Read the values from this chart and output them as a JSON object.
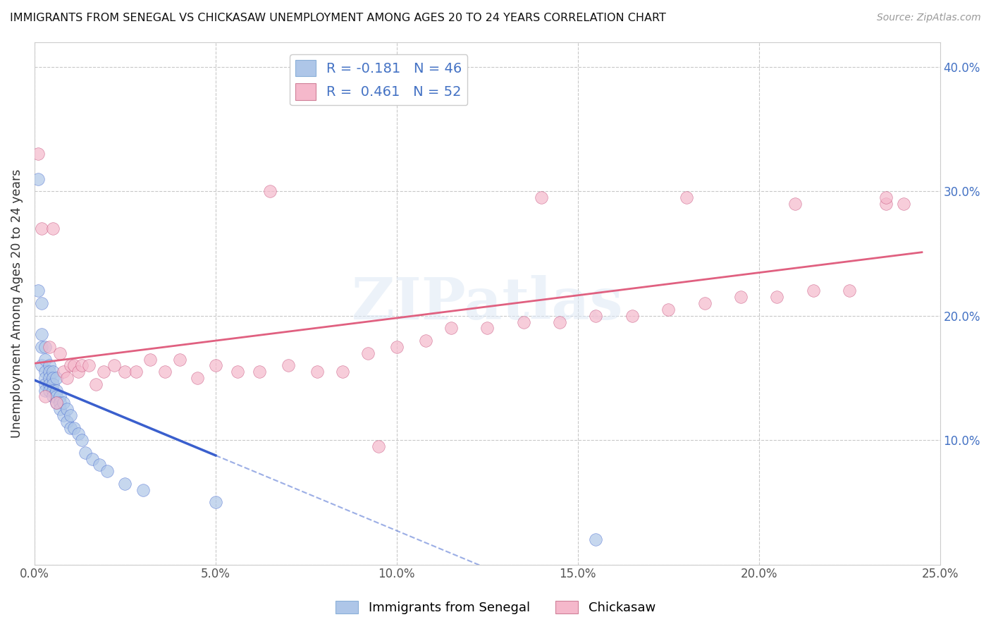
{
  "title": "IMMIGRANTS FROM SENEGAL VS CHICKASAW UNEMPLOYMENT AMONG AGES 20 TO 24 YEARS CORRELATION CHART",
  "source": "Source: ZipAtlas.com",
  "ylabel": "Unemployment Among Ages 20 to 24 years",
  "legend_label1": "Immigrants from Senegal",
  "legend_label2": "Chickasaw",
  "r1": -0.181,
  "n1": 46,
  "r2": 0.461,
  "n2": 52,
  "color1": "#aec6e8",
  "color2": "#f5b8cb",
  "line_color1": "#3a5fcd",
  "line_color2": "#e06080",
  "xlim": [
    0.0,
    0.25
  ],
  "ylim": [
    0.0,
    0.42
  ],
  "xticks": [
    0.0,
    0.05,
    0.1,
    0.15,
    0.2,
    0.25
  ],
  "xticklabels": [
    "0.0%",
    "5.0%",
    "10.0%",
    "15.0%",
    "20.0%",
    "25.0%"
  ],
  "yticks": [
    0.0,
    0.1,
    0.2,
    0.3,
    0.4
  ],
  "yticklabels_right": [
    "",
    "10.0%",
    "20.0%",
    "30.0%",
    "40.0%"
  ],
  "blue_x": [
    0.001,
    0.001,
    0.002,
    0.002,
    0.002,
    0.002,
    0.003,
    0.003,
    0.003,
    0.003,
    0.003,
    0.003,
    0.004,
    0.004,
    0.004,
    0.004,
    0.004,
    0.005,
    0.005,
    0.005,
    0.005,
    0.005,
    0.006,
    0.006,
    0.006,
    0.006,
    0.007,
    0.007,
    0.007,
    0.008,
    0.008,
    0.009,
    0.009,
    0.01,
    0.01,
    0.011,
    0.012,
    0.013,
    0.014,
    0.016,
    0.018,
    0.02,
    0.025,
    0.03,
    0.05,
    0.155
  ],
  "blue_y": [
    0.31,
    0.22,
    0.21,
    0.185,
    0.175,
    0.16,
    0.175,
    0.165,
    0.155,
    0.15,
    0.145,
    0.14,
    0.16,
    0.155,
    0.15,
    0.145,
    0.14,
    0.155,
    0.15,
    0.145,
    0.14,
    0.135,
    0.15,
    0.14,
    0.135,
    0.13,
    0.135,
    0.13,
    0.125,
    0.13,
    0.12,
    0.125,
    0.115,
    0.12,
    0.11,
    0.11,
    0.105,
    0.1,
    0.09,
    0.085,
    0.08,
    0.075,
    0.065,
    0.06,
    0.05,
    0.02
  ],
  "pink_x": [
    0.001,
    0.002,
    0.003,
    0.004,
    0.005,
    0.006,
    0.007,
    0.008,
    0.009,
    0.01,
    0.011,
    0.012,
    0.013,
    0.015,
    0.017,
    0.019,
    0.022,
    0.025,
    0.028,
    0.032,
    0.036,
    0.04,
    0.045,
    0.05,
    0.056,
    0.062,
    0.07,
    0.078,
    0.085,
    0.092,
    0.1,
    0.108,
    0.115,
    0.125,
    0.135,
    0.145,
    0.155,
    0.165,
    0.175,
    0.185,
    0.195,
    0.205,
    0.215,
    0.225,
    0.235,
    0.24,
    0.065,
    0.14,
    0.095,
    0.18,
    0.21,
    0.235
  ],
  "pink_y": [
    0.33,
    0.27,
    0.135,
    0.175,
    0.27,
    0.13,
    0.17,
    0.155,
    0.15,
    0.16,
    0.16,
    0.155,
    0.16,
    0.16,
    0.145,
    0.155,
    0.16,
    0.155,
    0.155,
    0.165,
    0.155,
    0.165,
    0.15,
    0.16,
    0.155,
    0.155,
    0.16,
    0.155,
    0.155,
    0.17,
    0.175,
    0.18,
    0.19,
    0.19,
    0.195,
    0.195,
    0.2,
    0.2,
    0.205,
    0.21,
    0.215,
    0.215,
    0.22,
    0.22,
    0.29,
    0.29,
    0.3,
    0.295,
    0.095,
    0.295,
    0.29,
    0.295
  ]
}
